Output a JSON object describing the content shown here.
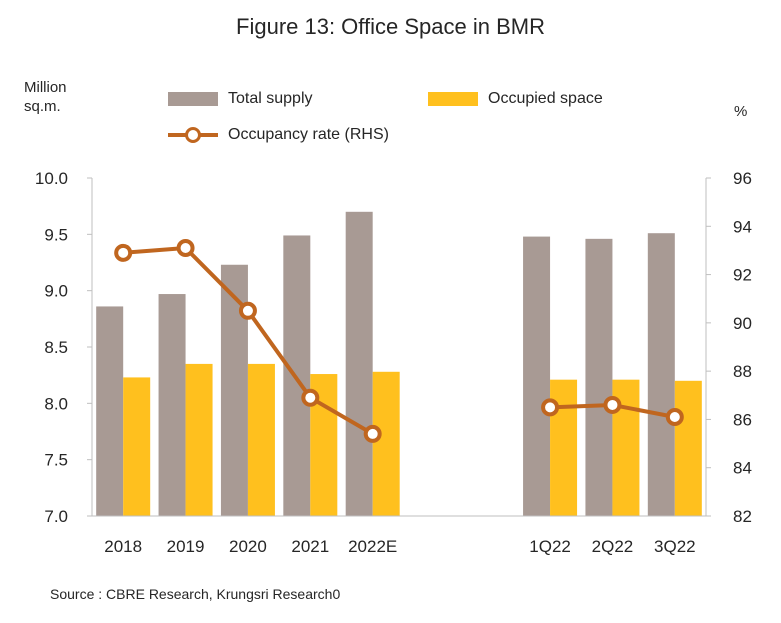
{
  "title": "Figure 13: Office Space in BMR",
  "left_unit_line1": "Million",
  "left_unit_line2": "sq.m.",
  "right_unit": "%",
  "source": "Source : CBRE Research, Krungsri Research0",
  "colors": {
    "total_supply": "#A89A94",
    "occupied_space": "#FFC01E",
    "occupancy_rate": "#C0661F"
  },
  "chart_data": {
    "type": "bar",
    "categories": [
      "2018",
      "2019",
      "2020",
      "2021",
      "2022E",
      "1Q22",
      "2Q22",
      "3Q22"
    ],
    "series": [
      {
        "name": "Total supply",
        "type": "bar",
        "axis": "left",
        "values": [
          8.86,
          8.97,
          9.23,
          9.49,
          9.7,
          9.48,
          9.46,
          9.51
        ]
      },
      {
        "name": "Occupied space",
        "type": "bar",
        "axis": "left",
        "values": [
          8.23,
          8.35,
          8.35,
          8.26,
          8.28,
          8.21,
          8.21,
          8.2
        ]
      },
      {
        "name": "Occupancy rate (RHS)",
        "type": "line",
        "axis": "right",
        "segments": [
          [
            0,
            4
          ],
          [
            5,
            7
          ]
        ],
        "values": [
          92.9,
          93.1,
          90.5,
          86.9,
          85.4,
          86.5,
          86.6,
          86.1
        ]
      }
    ],
    "y_left": {
      "min": 7.0,
      "max": 10.0,
      "ticks": [
        "7.0",
        "7.5",
        "8.0",
        "8.5",
        "9.0",
        "9.5",
        "10.0"
      ]
    },
    "y_right": {
      "min": 82,
      "max": 96,
      "ticks": [
        "82",
        "84",
        "86",
        "88",
        "90",
        "92",
        "94",
        "96"
      ]
    },
    "legend": [
      "Total supply",
      "Occupied space",
      "Occupancy rate (RHS)"
    ],
    "grid": false,
    "legend_position": "top"
  }
}
